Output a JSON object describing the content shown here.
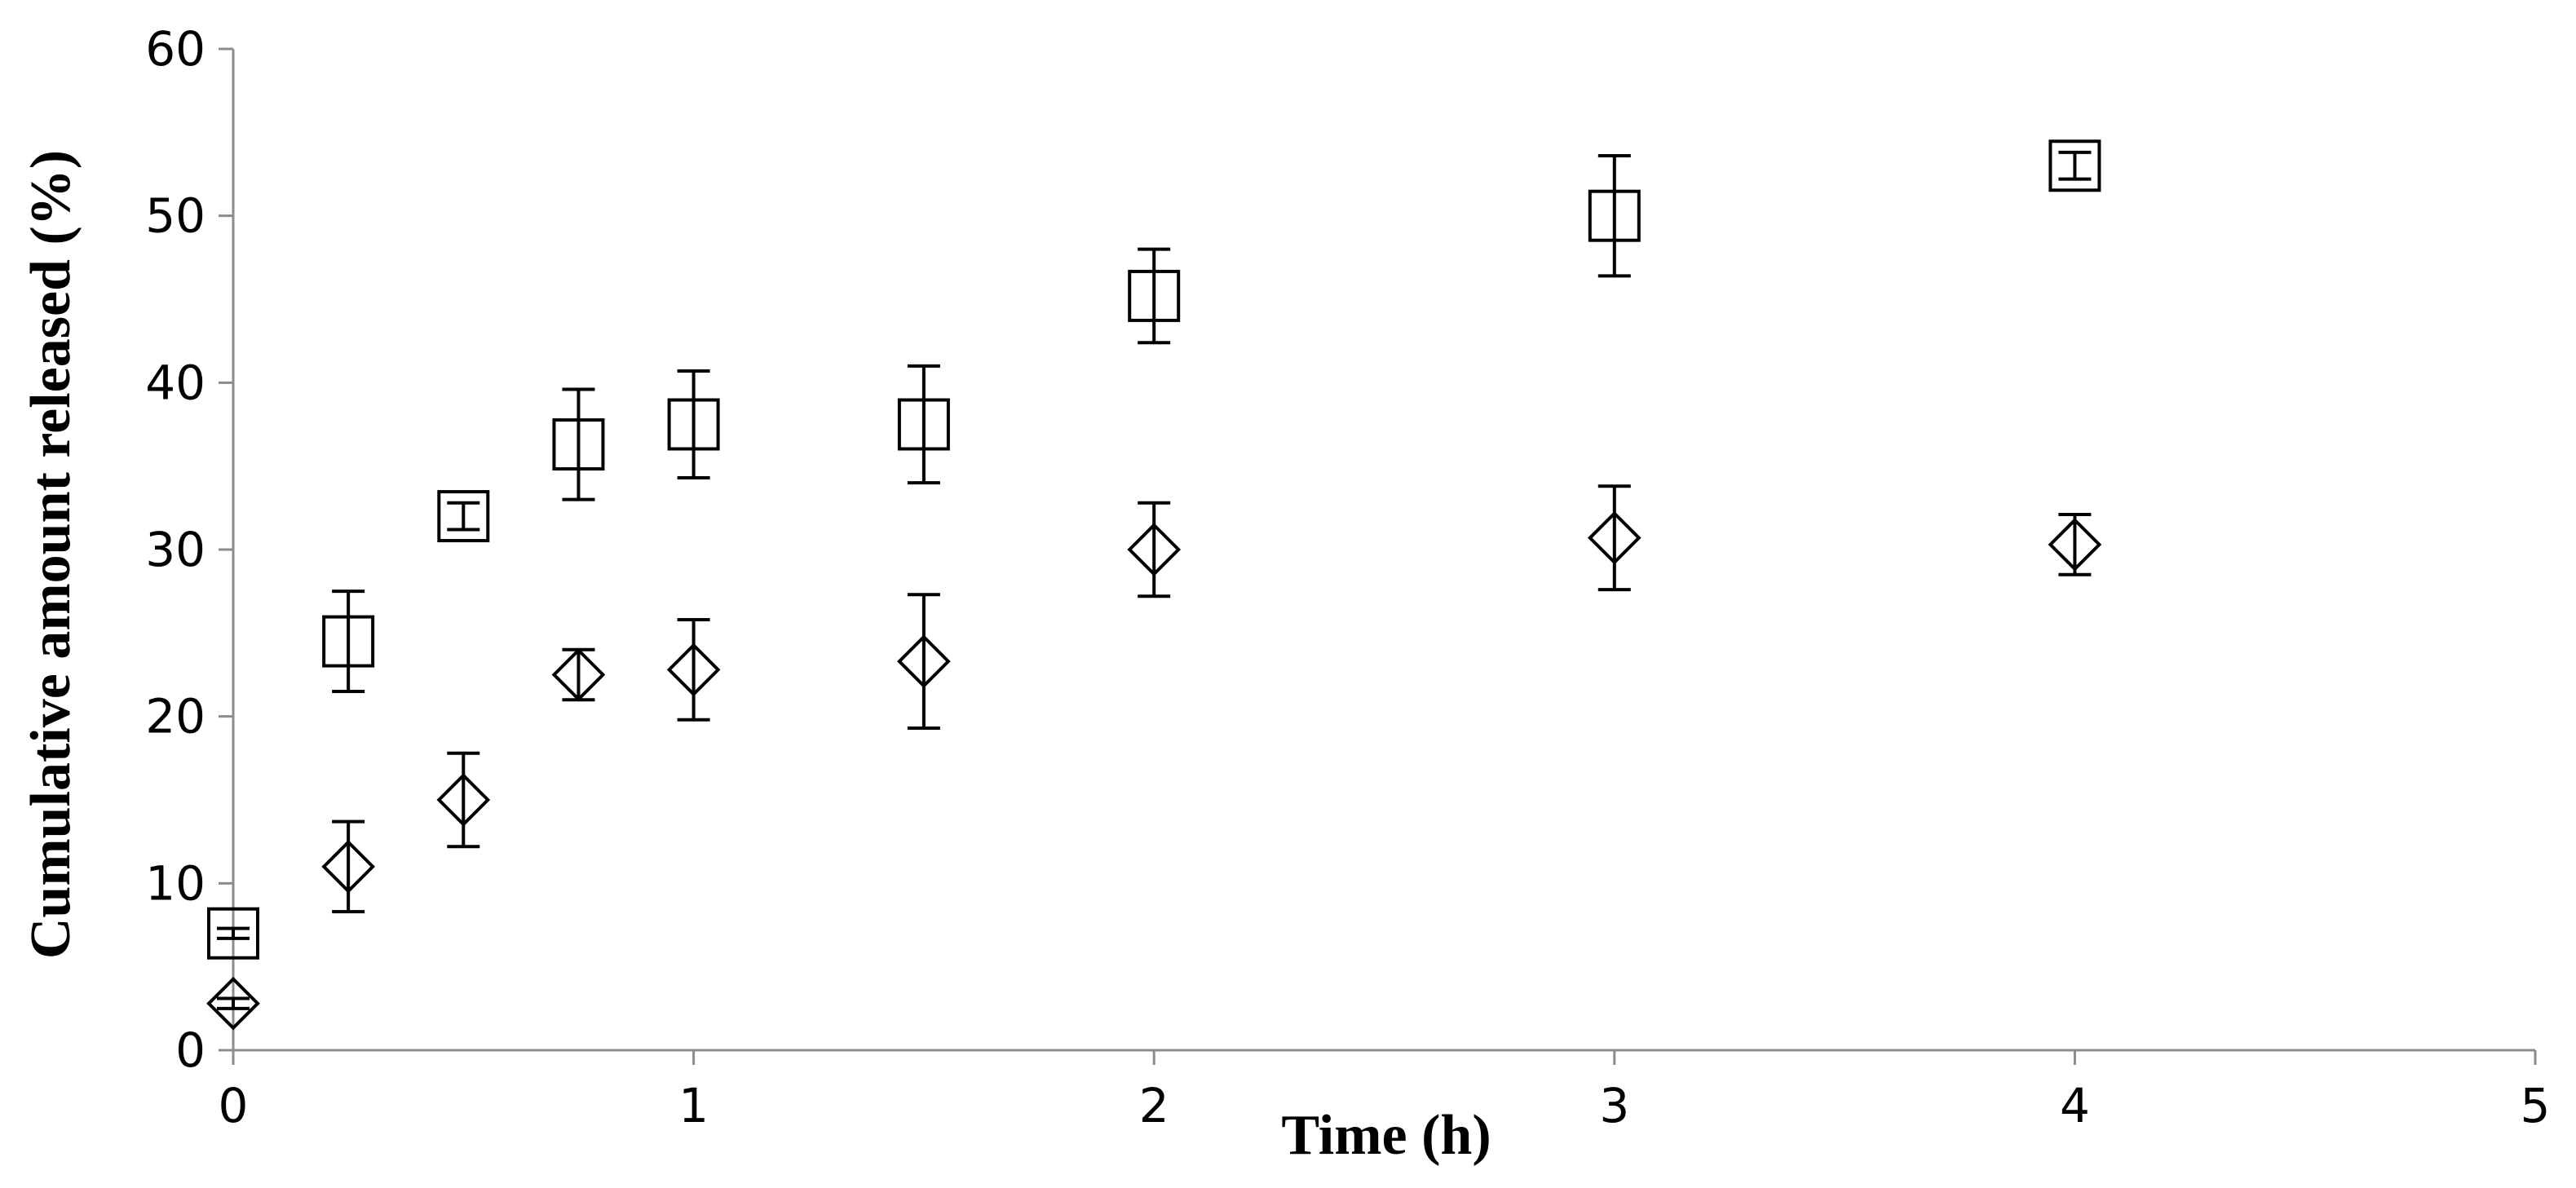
{
  "chart_data": {
    "type": "scatter",
    "xlabel": "Time (h)",
    "ylabel": "Cumulative amount released (%)",
    "x": [
      0,
      0.25,
      0.5,
      0.75,
      1,
      1.5,
      2,
      3,
      4
    ],
    "series": [
      {
        "marker": "square",
        "color": "#000000",
        "values": [
          7,
          24.5,
          32,
          36.3,
          37.5,
          37.5,
          45.2,
          50,
          53
        ],
        "errors": [
          0.3,
          3,
          0.8,
          3.3,
          3.2,
          3.5,
          2.8,
          3.6,
          0.8
        ]
      },
      {
        "marker": "diamond",
        "color": "#000000",
        "values": [
          2.8,
          11,
          15,
          22.5,
          22.8,
          23.3,
          30,
          30.7,
          30.3
        ],
        "errors": [
          0.3,
          2.7,
          2.8,
          1.5,
          3,
          4,
          2.8,
          3.1,
          1.8
        ]
      }
    ],
    "xlim": [
      0,
      5
    ],
    "xticks": [
      0,
      1,
      2,
      3,
      4,
      5
    ],
    "ylim": [
      0,
      60
    ],
    "yticks": [
      0,
      10,
      20,
      30,
      40,
      50,
      60
    ],
    "grid": false
  }
}
